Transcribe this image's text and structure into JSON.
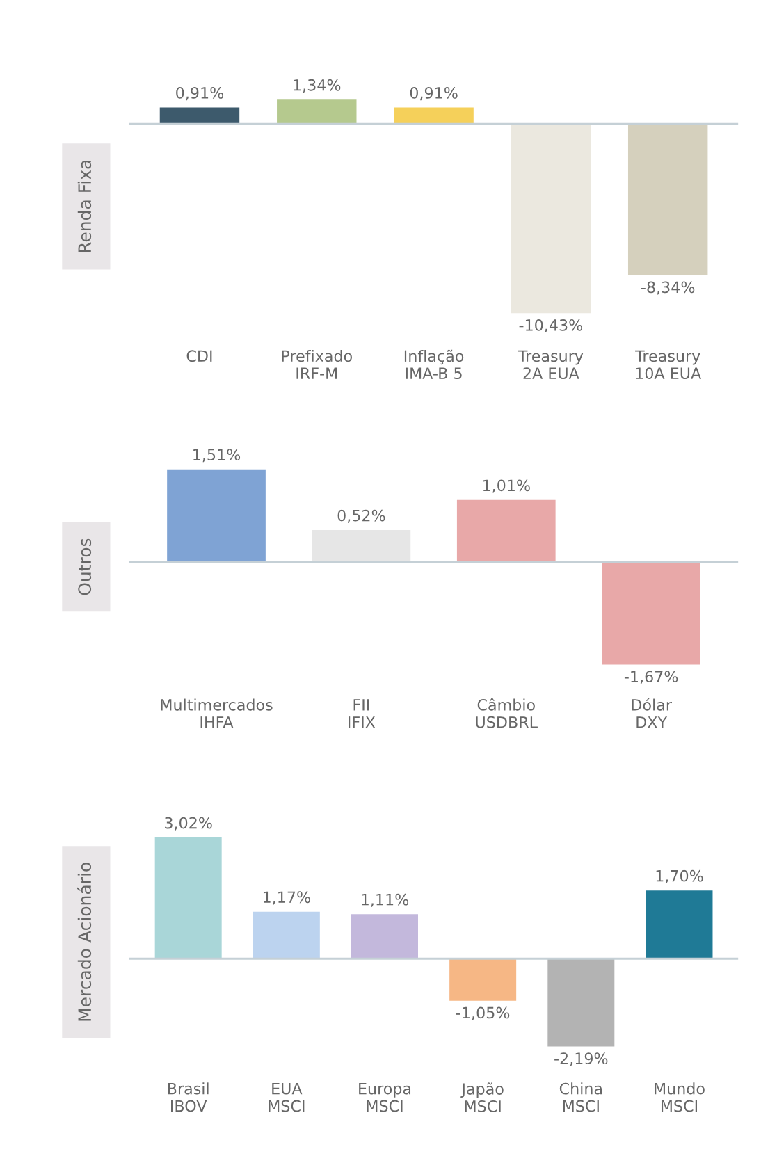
{
  "chart_data": [
    {
      "type": "bar",
      "ylabel": "Renda Fixa",
      "categories": [
        "CDI",
        "Prefixado\nIRF-M",
        "Inflação\nIMA-B 5",
        "Treasury\n2A EUA",
        "Treasury\n10A EUA"
      ],
      "values": [
        0.91,
        1.34,
        0.91,
        -10.43,
        -8.34
      ],
      "colors": [
        "#3d5a6c",
        "#b5c98e",
        "#f5d05a",
        "#ebe8df",
        "#d5d0bd"
      ],
      "value_labels": [
        "0,91%",
        "1,34%",
        "0,91%",
        "-10,43%",
        "-8,34%"
      ],
      "ref_lines": [
        {
          "axis": "y",
          "value": 0,
          "color": "#c5d0d6"
        }
      ],
      "grid": false,
      "tick_labels": "x"
    },
    {
      "type": "bar",
      "ylabel": "Outros",
      "categories": [
        "Multimercados\nIHFA",
        "FII\nIFIX",
        "Câmbio\nUSDBRL",
        "Dólar\nDXY"
      ],
      "values": [
        1.51,
        0.52,
        1.01,
        -1.67
      ],
      "colors": [
        "#7fa3d4",
        "#e6e6e6",
        "#e8a8a8",
        "#e8a8a8"
      ],
      "value_labels": [
        "1,51%",
        "0,52%",
        "1,01%",
        "-1,67%"
      ],
      "ref_lines": [
        {
          "axis": "y",
          "value": 0,
          "color": "#c5d0d6"
        }
      ],
      "grid": false,
      "tick_labels": "x"
    },
    {
      "type": "bar",
      "ylabel": "Mercado Acionário",
      "categories": [
        "Brasil\nIBOV",
        "EUA\nMSCI",
        "Europa\nMSCI",
        "Japão\nMSCI",
        "China\nMSCI",
        "Mundo\nMSCI"
      ],
      "values": [
        3.02,
        1.17,
        1.11,
        -1.05,
        -2.19,
        1.7
      ],
      "colors": [
        "#a9d6d8",
        "#bcd3ef",
        "#c3b8dc",
        "#f6b785",
        "#b3b3b3",
        "#1f7a96"
      ],
      "value_labels": [
        "3,02%",
        "1,17%",
        "1,11%",
        "-1,05%",
        "-2,19%",
        "1,70%"
      ],
      "ref_lines": [
        {
          "axis": "y",
          "value": 0,
          "color": "#c5d0d6"
        }
      ],
      "grid": false,
      "tick_labels": "x"
    }
  ]
}
